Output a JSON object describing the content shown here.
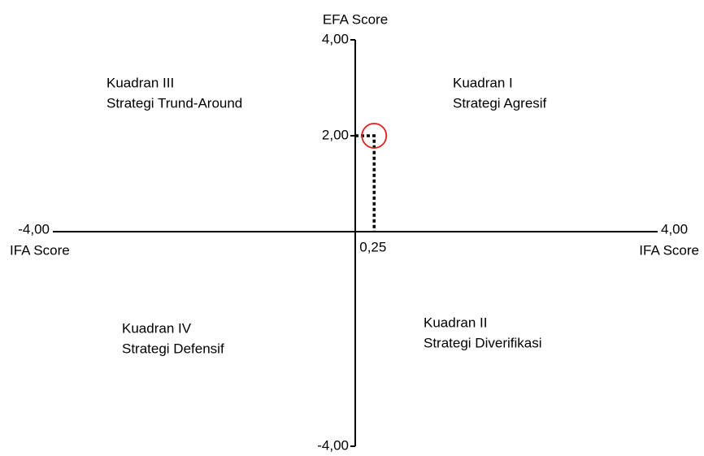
{
  "chart_data": {
    "type": "quadrant",
    "xlabel": "IFA Score",
    "ylabel": "EFA Score",
    "xlim": [
      -4,
      4
    ],
    "ylim": [
      -4,
      4
    ],
    "xticks": [
      {
        "value": -4,
        "label": "-4,00"
      },
      {
        "value": 4,
        "label": "4,00"
      }
    ],
    "yticks": [
      {
        "value": -4,
        "label": "-4,00"
      },
      {
        "value": 2,
        "label": "2,00"
      },
      {
        "value": 4,
        "label": "4,00"
      }
    ],
    "point": {
      "x": 0.25,
      "y": 2,
      "x_label": "0,25",
      "color": "#e02020"
    },
    "quadrants": [
      {
        "title": "Kuadran I",
        "text": "Strategi Agresif"
      },
      {
        "title": "Kuadran II",
        "text": "Strategi Diverifikasi"
      },
      {
        "title": "Kuadran III",
        "text": "Strategi Trund-Around"
      },
      {
        "title": "Kuadran IV",
        "text": "Strategi Defensif"
      }
    ]
  }
}
